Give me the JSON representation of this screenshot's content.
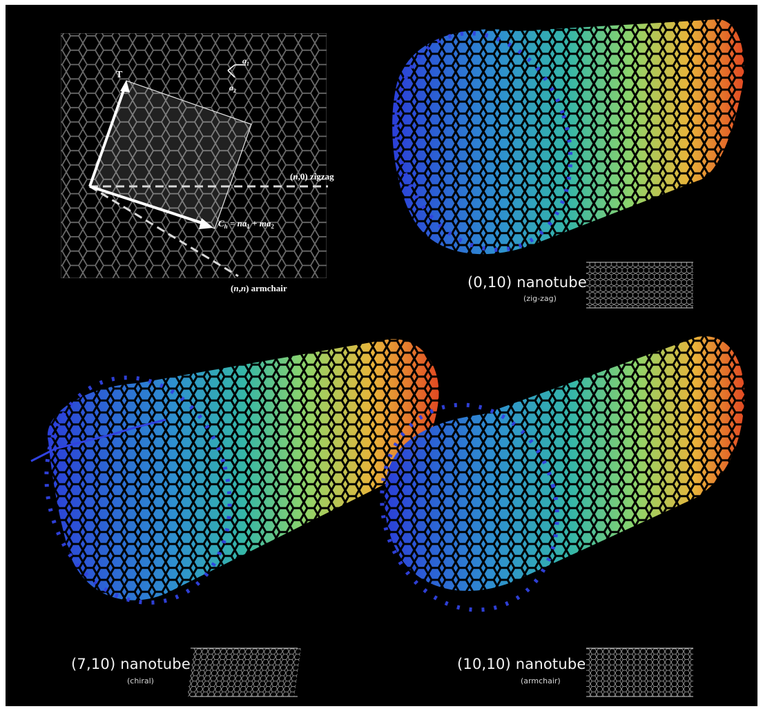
{
  "lattice": {
    "t_label": "T",
    "a1_label": "a",
    "a1_sub": "1",
    "a2_label": "a",
    "a2_sub": "2",
    "zigzag_n": "n",
    "zigzag_label": "zigzag",
    "zigzag_rest": ",0)",
    "armchair_n1": "n",
    "armchair_n2": "n",
    "armchair_label": "armchair",
    "ch_c": "C",
    "ch_sub": "h",
    "ch_eq": " = ",
    "ch_n": "n",
    "ch_a1": "a",
    "ch_a1_sub": "1",
    "ch_plus": " + ",
    "ch_m": "m",
    "ch_a2": "a",
    "ch_a2_sub": "2"
  },
  "nanotubes": [
    {
      "id": "zigzag",
      "title": "(0,10) nanotube",
      "subtitle": "(zig-zag)"
    },
    {
      "id": "chiral",
      "title": "(7,10) nanotube",
      "subtitle": "(chiral)"
    },
    {
      "id": "armchair",
      "title": "(10,10) nanotube",
      "subtitle": "(armchair)"
    }
  ],
  "colors": {
    "background": "#000000",
    "tube_gradient": [
      "#2b3fd8",
      "#2e8fd0",
      "#35b6a8",
      "#8fd46a",
      "#e8b43a",
      "#e24a22"
    ],
    "lattice_lines": "#6a6a6a",
    "arrows": "#ffffff"
  }
}
